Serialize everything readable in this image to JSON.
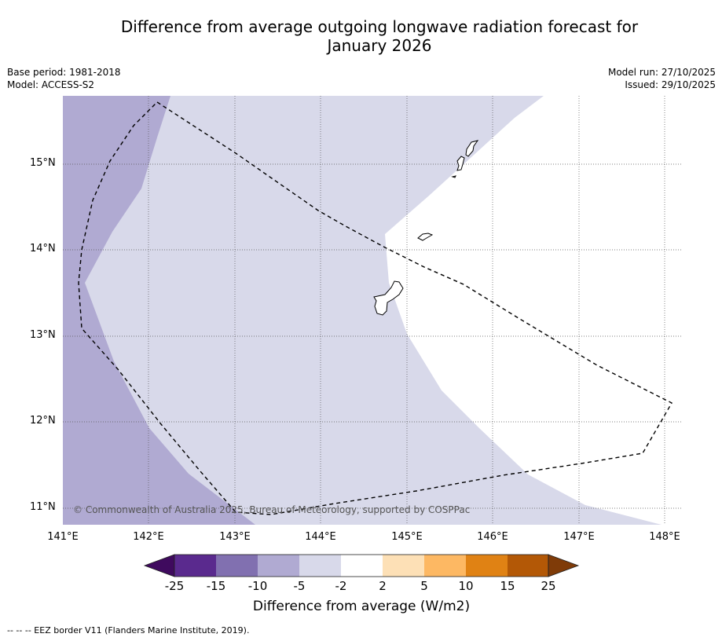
{
  "title": {
    "line1": "Difference from average outgoing longwave radiation forecast for",
    "line2": "January 2026"
  },
  "meta": {
    "base_period": "Base period: 1981-2018",
    "model": "Model: ACCESS-S2",
    "model_run": "Model run: 27/10/2025",
    "issued": "Issued: 29/10/2025"
  },
  "map": {
    "lat_labels": [
      "15°N",
      "14°N",
      "13°N",
      "12°N",
      "11°N"
    ],
    "lon_labels": [
      "141°E",
      "142°E",
      "143°E",
      "144°E",
      "145°E",
      "146°E",
      "147°E",
      "148°E"
    ],
    "copyright": "© Commonwealth of Australia 2025, Bureau of Meteorology, supported by COSPPac",
    "features": [
      "Guam",
      "Rota",
      "Aguijan",
      "Tinian",
      "Saipan"
    ],
    "shading_classes": [
      "-10 to -5",
      "-5 to -2",
      "-2 to 2"
    ]
  },
  "colorbar": {
    "label": "Difference from average (W/m2)",
    "tick_labels": [
      "-25",
      "-15",
      "-10",
      "-5",
      "-2",
      "2",
      "5",
      "10",
      "15",
      "25"
    ],
    "colors": {
      "under": "#3f0a5e",
      "bins": [
        "#5a2a8e",
        "#8170b0",
        "#b0aad2",
        "#d8d9ea",
        "#ffffff",
        "#fde0b6",
        "#fdb863",
        "#e08214",
        "#b35806"
      ],
      "over": "#7f3b08"
    }
  },
  "footnote": "--  --  -- EEZ border V11 (Flanders Marine Institute, 2019)."
}
